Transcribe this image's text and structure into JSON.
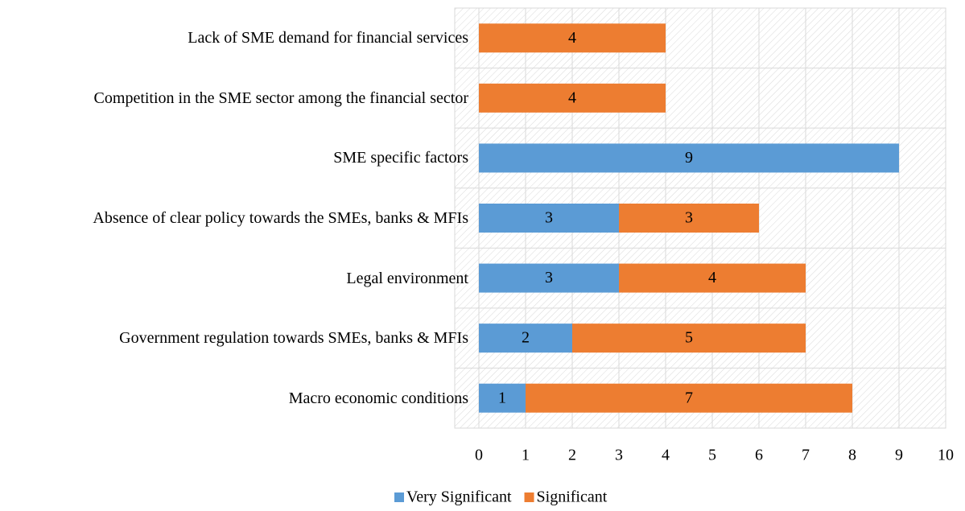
{
  "chart_data": {
    "type": "stacked-barh",
    "categories": [
      "Lack of SME demand for financial services",
      "Competition in the SME sector among the financial sector",
      "SME specific factors",
      "Absence of clear policy towards the SMEs, banks & MFIs",
      "Legal environment",
      "Government regulation towards SMEs, banks & MFIs",
      "Macro economic conditions"
    ],
    "series": [
      {
        "name": "Very Significant",
        "color": "#5b9bd5",
        "values": [
          null,
          null,
          9,
          3,
          3,
          2,
          1
        ]
      },
      {
        "name": "Significant",
        "color": "#ed7d31",
        "values": [
          4,
          4,
          null,
          3,
          4,
          5,
          7
        ]
      }
    ],
    "xlim": [
      0,
      10
    ],
    "xticks": [
      0,
      1,
      2,
      3,
      4,
      5,
      6,
      7,
      8,
      9,
      10
    ],
    "grid": true,
    "legend": "bottom"
  }
}
